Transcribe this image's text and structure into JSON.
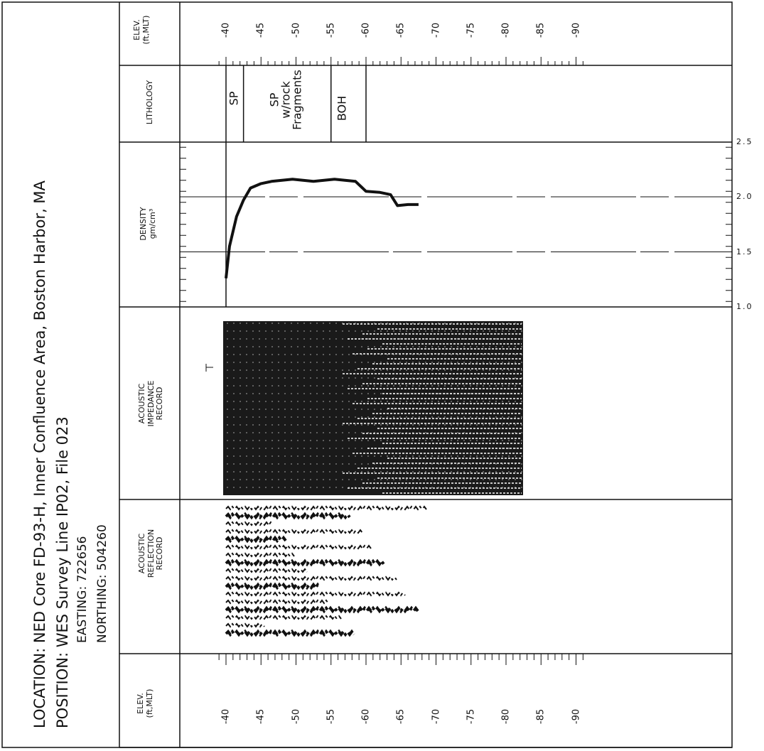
{
  "header": {
    "location": "LOCATION: NED Core FD-93-H, Inner Confluence Area, Boston Harbor, MA",
    "position": "POSITION: WES Survey Line IP02, File 023",
    "easting": "EASTING: 722656",
    "northing": "NORTHING: 504260"
  },
  "columns": {
    "elev_left": [
      "ELEV.",
      "(ft,MLT)"
    ],
    "reflection": [
      "ACOUSTIC",
      "REFLECTION",
      "RECORD"
    ],
    "impedance": [
      "ACOUSTIC",
      "IMPEDANCE",
      "RECORD"
    ],
    "density": [
      "DENSITY",
      "gm/cm³"
    ],
    "lithology": [
      "LITHOLOGY"
    ],
    "elev_right": [
      "ELEV.",
      "(ft,MLT)"
    ]
  },
  "elevation_ticks": [
    "-40",
    "-45",
    "-50",
    "-55",
    "-60",
    "-65",
    "-70",
    "-75",
    "-80",
    "-85",
    "-90"
  ],
  "lithology_units": [
    {
      "lines": [
        "SP"
      ],
      "top_ft": -40,
      "bottom_ft": -42.5
    },
    {
      "lines": [
        "SP",
        "w/rock",
        "Fragments"
      ],
      "top_ft": -42.5,
      "bottom_ft": -55
    },
    {
      "lines": [
        "BOH"
      ],
      "top_ft": -55,
      "bottom_ft": -60
    }
  ],
  "density_scale": [
    "1.0",
    "1.5",
    "2.0",
    "2.5"
  ],
  "chart_data": {
    "type": "line",
    "title": "",
    "xlabel": "ELEV. (ft,MLT)",
    "ylabel": "DENSITY gm/cm³",
    "xlim": [
      -38,
      -92
    ],
    "ylim": [
      1.0,
      2.5
    ],
    "x": [
      -40,
      -40.5,
      -41.5,
      -42.5,
      -43.5,
      -45,
      -46.5,
      -48,
      -49.5,
      -51,
      -52.5,
      -54,
      -55.5,
      -57,
      -58.5,
      -60,
      -62,
      -63.5,
      -64.5,
      -66,
      -67.5
    ],
    "series": [
      {
        "values": [
          1.26,
          1.55,
          1.82,
          1.97,
          2.08,
          2.12,
          2.14,
          2.15,
          2.16,
          2.15,
          2.14,
          2.15,
          2.16,
          2.15,
          2.14,
          2.05,
          2.04,
          2.02,
          1.92,
          1.93,
          1.93
        ]
      }
    ]
  },
  "colors": {
    "ink": "#111111",
    "background": "#ffffff"
  }
}
